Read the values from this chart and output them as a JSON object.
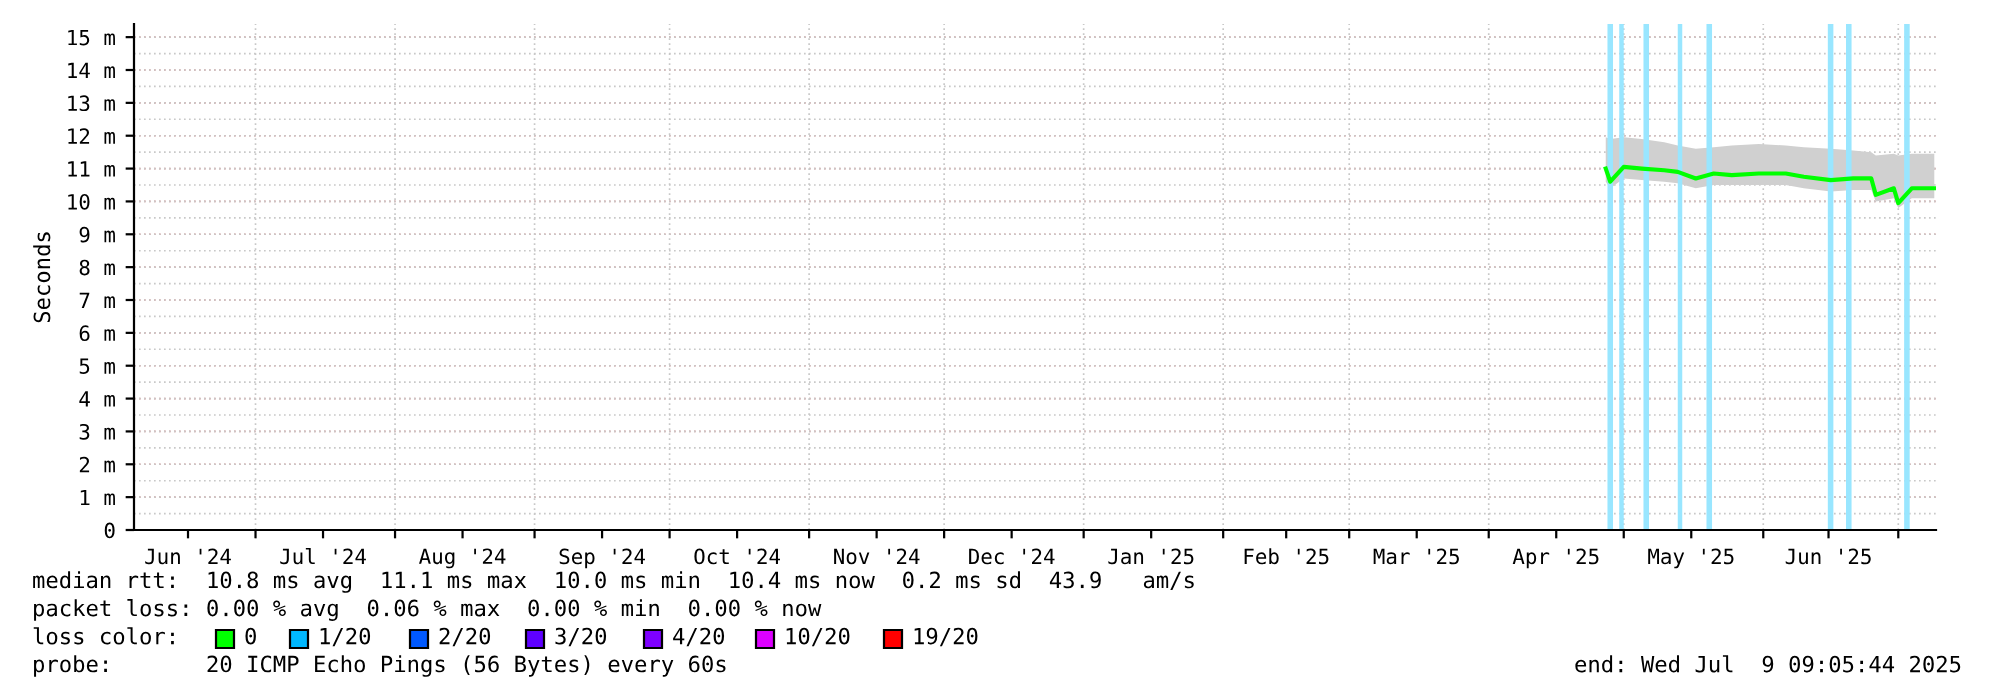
{
  "chart_data": {
    "type": "line",
    "ylabel": "Seconds",
    "xlim": [
      "2024-06-04",
      "2025-07-09T09:05"
    ],
    "ylim": [
      0,
      15.4
    ],
    "yticks": [
      0,
      {
        "value": 0.5,
        "label": null
      },
      {
        "value": 1,
        "label": "1 m"
      },
      {
        "value": 1.5,
        "label": null
      },
      {
        "value": 2,
        "label": "2 m"
      },
      {
        "value": 2.5,
        "label": null
      },
      {
        "value": 3,
        "label": "3 m"
      },
      {
        "value": 3.5,
        "label": null
      },
      {
        "value": 4,
        "label": "4 m"
      },
      {
        "value": 4.5,
        "label": null
      },
      {
        "value": 5,
        "label": "5 m"
      },
      {
        "value": 5.5,
        "label": null
      },
      {
        "value": 6,
        "label": "6 m"
      },
      {
        "value": 6.5,
        "label": null
      },
      {
        "value": 7,
        "label": "7 m"
      },
      {
        "value": 7.5,
        "label": null
      },
      {
        "value": 8,
        "label": "8 m"
      },
      {
        "value": 8.5,
        "label": null
      },
      {
        "value": 9,
        "label": "9 m"
      },
      {
        "value": 9.5,
        "label": null
      },
      {
        "value": 10,
        "label": "10 m"
      },
      {
        "value": 10.5,
        "label": null
      },
      {
        "value": 11,
        "label": "11 m"
      },
      {
        "value": 11.5,
        "label": null
      },
      {
        "value": 12,
        "label": "12 m"
      },
      {
        "value": 12.5,
        "label": null
      },
      {
        "value": 13,
        "label": "13 m"
      },
      {
        "value": 13.5,
        "label": null
      },
      {
        "value": 14,
        "label": "14 m"
      },
      {
        "value": 14.5,
        "label": null
      },
      {
        "value": 15,
        "label": "15 m"
      }
    ],
    "xticks": [
      {
        "value": "2024-06-16",
        "label": "Jun '24"
      },
      {
        "value": "2024-07-01",
        "label": null
      },
      {
        "value": "2024-07-16",
        "label": "Jul '24"
      },
      {
        "value": "2024-08-01",
        "label": null
      },
      {
        "value": "2024-08-16",
        "label": "Aug '24"
      },
      {
        "value": "2024-09-01",
        "label": null
      },
      {
        "value": "2024-09-16",
        "label": "Sep '24"
      },
      {
        "value": "2024-10-01",
        "label": null
      },
      {
        "value": "2024-10-16",
        "label": "Oct '24"
      },
      {
        "value": "2024-11-01",
        "label": null
      },
      {
        "value": "2024-11-16",
        "label": "Nov '24"
      },
      {
        "value": "2024-12-01",
        "label": null
      },
      {
        "value": "2024-12-16",
        "label": "Dec '24"
      },
      {
        "value": "2025-01-01",
        "label": null
      },
      {
        "value": "2025-01-16",
        "label": "Jan '25"
      },
      {
        "value": "2025-02-01",
        "label": null
      },
      {
        "value": "2025-02-15",
        "label": "Feb '25"
      },
      {
        "value": "2025-03-01",
        "label": null
      },
      {
        "value": "2025-03-16",
        "label": "Mar '25"
      },
      {
        "value": "2025-04-01",
        "label": null
      },
      {
        "value": "2025-04-16",
        "label": "Apr '25"
      },
      {
        "value": "2025-05-01",
        "label": null
      },
      {
        "value": "2025-05-16",
        "label": "May '25"
      },
      {
        "value": "2025-06-01",
        "label": null
      },
      {
        "value": "2025-06-15T12:00",
        "label": "Jun '25"
      },
      {
        "value": "2025-07-01",
        "label": null
      }
    ],
    "grid": true,
    "line_style": "solid",
    "series": [
      {
        "color": "#00ff00",
        "x": [
          "2025-04-27",
          "2025-04-28",
          "2025-05-01",
          "2025-05-05",
          "2025-05-10",
          "2025-05-13",
          "2025-05-17",
          "2025-05-21",
          "2025-05-25",
          "2025-05-31",
          "2025-06-06",
          "2025-06-10",
          "2025-06-16",
          "2025-06-21",
          "2025-06-25",
          "2025-06-26",
          "2025-06-30",
          "2025-07-01",
          "2025-07-04",
          "2025-07-09"
        ],
        "values": [
          11.0,
          10.6,
          11.05,
          11.0,
          10.95,
          10.9,
          10.7,
          10.85,
          10.8,
          10.85,
          10.85,
          10.75,
          10.65,
          10.7,
          10.7,
          10.2,
          10.4,
          9.95,
          10.4,
          10.4
        ],
        "lower": [
          10.6,
          10.4,
          10.7,
          10.65,
          10.6,
          10.55,
          10.4,
          10.5,
          10.5,
          10.5,
          10.5,
          10.4,
          10.3,
          10.35,
          10.35,
          10.0,
          10.1,
          9.8,
          10.1,
          10.1
        ],
        "upper": [
          11.95,
          11.9,
          11.95,
          11.9,
          11.8,
          11.7,
          11.6,
          11.65,
          11.7,
          11.75,
          11.7,
          11.65,
          11.6,
          11.55,
          11.5,
          11.4,
          11.45,
          11.4,
          11.45,
          11.45
        ]
      }
    ],
    "ref_lines": [
      {
        "axis": "x",
        "value": "2025-04-28",
        "color": "#99e6ff"
      },
      {
        "axis": "x",
        "value": "2025-05-06",
        "color": "#99e6ff"
      },
      {
        "axis": "x",
        "value": "2025-05-20",
        "color": "#99e6ff"
      },
      {
        "axis": "x",
        "value": "2025-06-15T23:00",
        "color": "#99e6ff"
      },
      {
        "axis": "x",
        "value": "2025-06-20",
        "color": "#99e6ff"
      },
      {
        "axis": "x",
        "value": "2025-07-02T22:00",
        "color": "#99e6ff"
      }
    ],
    "bands": [
      {
        "axis": "x",
        "from": "2025-04-30",
        "to": "2025-05-01",
        "color": "#99e6ff"
      },
      {
        "axis": "x",
        "from": "2025-05-13",
        "to": "2025-05-14",
        "color": "#99e6ff"
      }
    ],
    "annotations": [
      "median rtt:  10.8 ms avg  11.1 ms max  10.0 ms min  10.4 ms now  0.2 ms sd  43.9   am/s",
      "packet loss: 0.00 % avg  0.06 % max  0.00 % min  0.00 % now",
      "loss color:",
      "0",
      "1/20",
      "2/20",
      "3/20",
      "4/20",
      "10/20",
      "19/20",
      "probe:       20 ICMP Echo Pings (56 Bytes) every 60s",
      "end: Wed Jul  9 09:05:44 2025"
    ]
  }
}
